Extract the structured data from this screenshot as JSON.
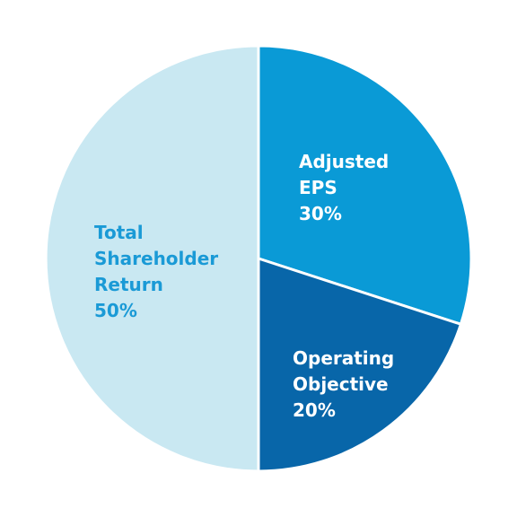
{
  "chart_data": {
    "type": "pie",
    "categories": [
      "Adjusted EPS",
      "Operating Objective",
      "Total Shareholder Return"
    ],
    "values": [
      30,
      20,
      50
    ],
    "value_labels": [
      "30%",
      "20%",
      "50%"
    ],
    "colors": [
      "#0a9ad6",
      "#0866a9",
      "#c9e8f2"
    ]
  }
}
